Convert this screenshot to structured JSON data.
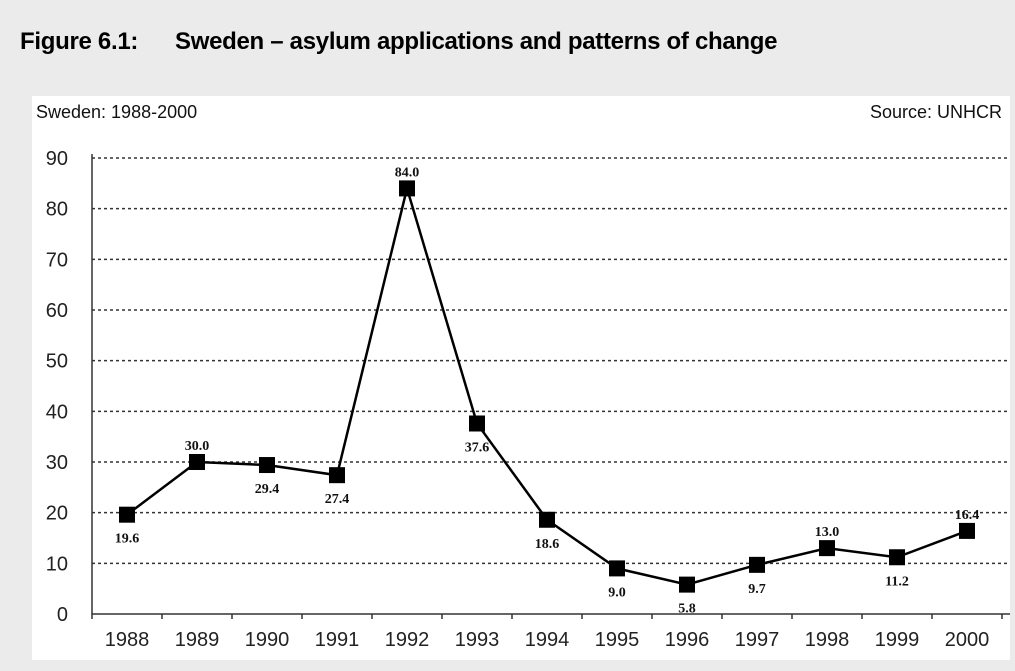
{
  "figure": {
    "number": "Figure 6.1:",
    "caption": "Sweden – asylum applications and patterns of change"
  },
  "panel": {
    "subtitle": "Sweden: 1988-2000",
    "source": "Source: UNHCR"
  },
  "chart_data": {
    "type": "line",
    "title": "Sweden: 1988-2000",
    "x": [
      "1988",
      "1989",
      "1990",
      "1991",
      "1992",
      "1993",
      "1994",
      "1995",
      "1996",
      "1997",
      "1998",
      "1999",
      "2000"
    ],
    "series": [
      {
        "values": [
          19.6,
          30.0,
          29.4,
          27.4,
          84.0,
          37.6,
          18.6,
          9.0,
          5.8,
          9.7,
          13.0,
          11.2,
          16.4
        ],
        "labels": [
          "19.6",
          "30.0",
          "29.4",
          "27.4",
          "84.0",
          "37.6",
          "18.6",
          "9.0",
          "5.8",
          "9.7",
          "13.0",
          "11.2",
          "16.4"
        ]
      }
    ],
    "ylim": [
      0,
      90
    ],
    "yticks": [
      0,
      10,
      20,
      30,
      40,
      50,
      60,
      70,
      80,
      90
    ],
    "grid": "horizontal dotted",
    "marker": "square",
    "color": "#000000"
  }
}
